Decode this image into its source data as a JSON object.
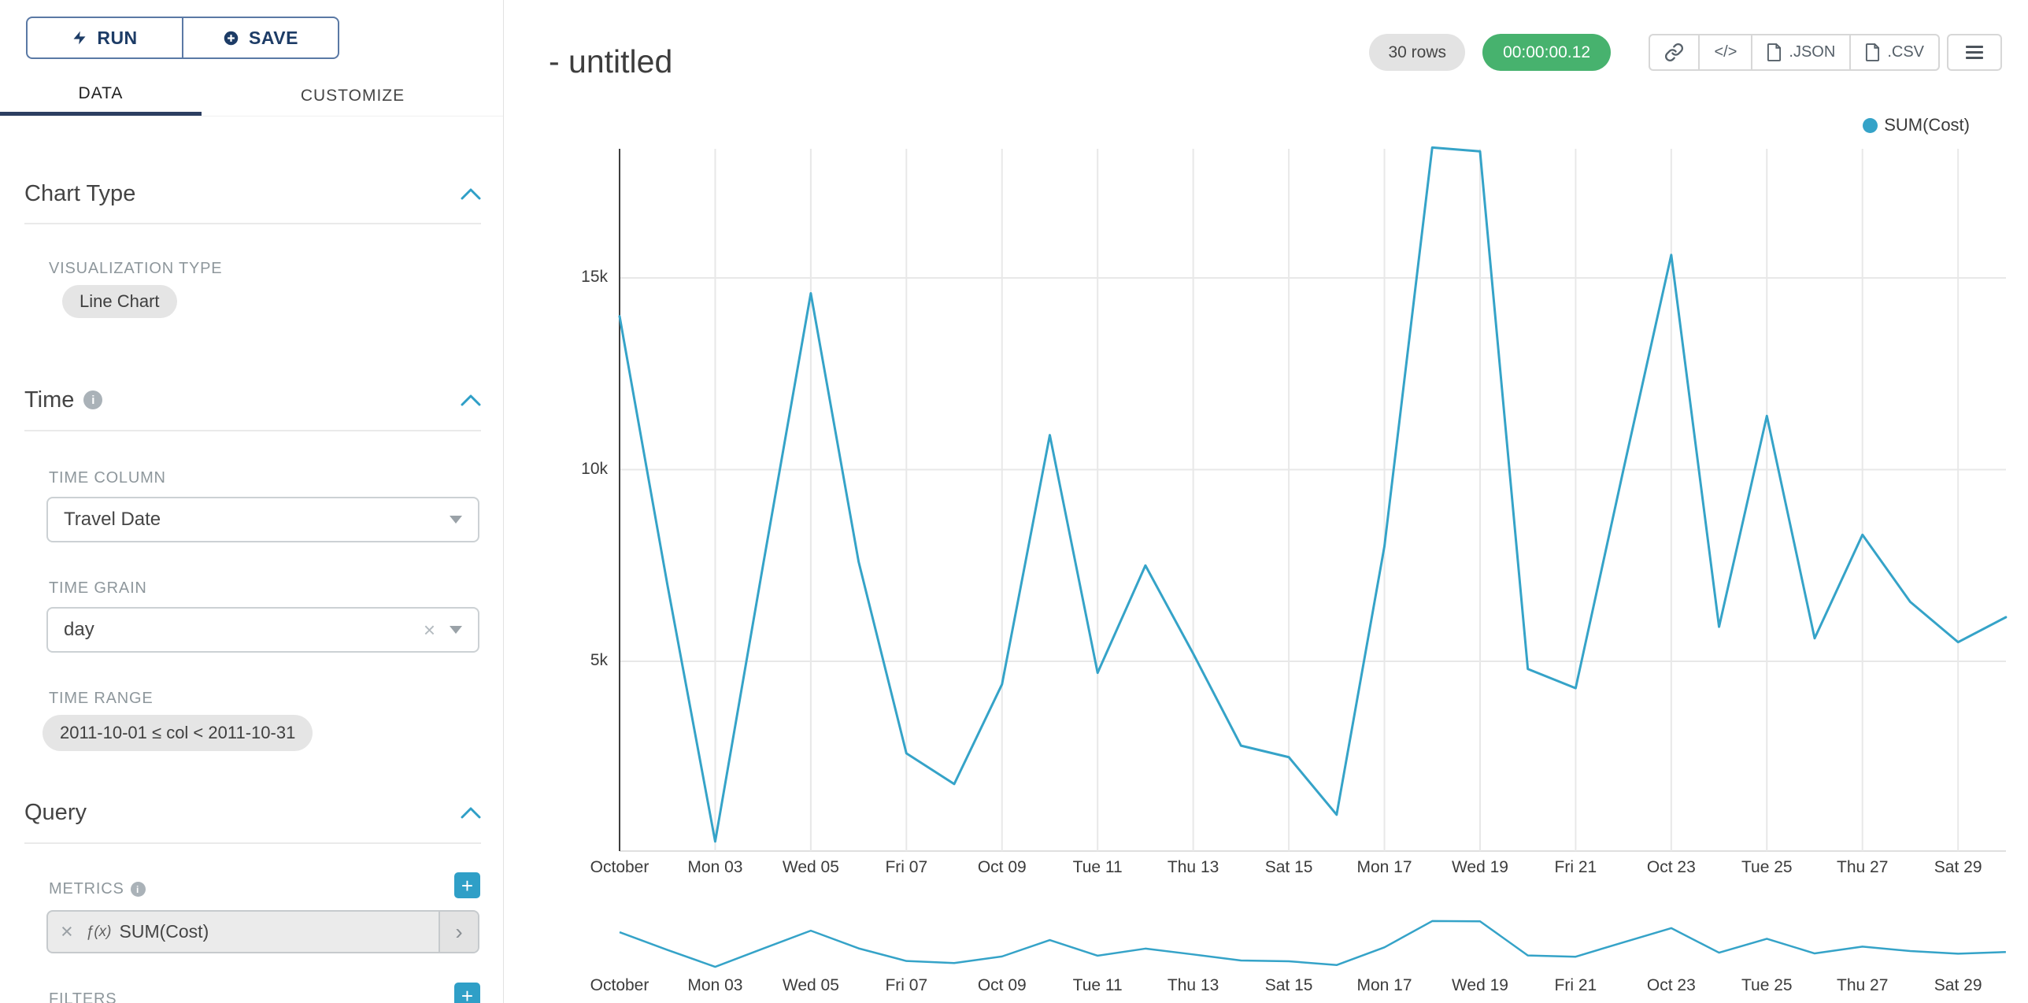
{
  "colors": {
    "accent": "#2F9FC7",
    "line": "#35A3C8",
    "timer_green": "#47B26E",
    "tab_underline": "#2C3E61",
    "button_navy": "#1D3C66",
    "button_border": "#5A79A5"
  },
  "icons": {
    "plus": "+",
    "clear": "×",
    "chevron_right": "›",
    "info": "i"
  },
  "sidebar": {
    "run_button": "RUN",
    "save_button": "SAVE",
    "tabs": {
      "data": "DATA",
      "customize": "CUSTOMIZE"
    },
    "chart_type": {
      "title": "Chart Type",
      "viz_label": "VISUALIZATION TYPE",
      "viz_value": "Line Chart"
    },
    "time": {
      "title": "Time",
      "column_label": "TIME COLUMN",
      "column_value": "Travel Date",
      "grain_label": "TIME GRAIN",
      "grain_value": "day",
      "range_label": "TIME RANGE",
      "range_value": "2011-10-01 ≤ col < 2011-10-31"
    },
    "query": {
      "title": "Query",
      "metrics_label": "METRICS",
      "metric_fn": "ƒ(x)",
      "metric_value": "SUM(Cost)",
      "filters_label": "FILTERS"
    }
  },
  "header": {
    "title": "- untitled",
    "rows_badge": "30 rows",
    "timer_badge": "00:00:00.12",
    "code_button": "</>",
    "json_button": ".JSON",
    "csv_button": ".CSV"
  },
  "chart_data": {
    "type": "line",
    "title": "",
    "xlabel": "",
    "ylabel": "",
    "legend_position": "top-right",
    "grid": true,
    "line_color": "#35A3C8",
    "num_points": 30,
    "x_range": "2011-10-01 to 2011-10-30, one point per day",
    "x_tick_days": [
      1,
      3,
      5,
      7,
      9,
      11,
      13,
      15,
      17,
      19,
      21,
      23,
      25,
      27,
      29
    ],
    "x_tick_labels": [
      "October",
      "Mon 03",
      "Wed 05",
      "Fri 07",
      "Oct 09",
      "Tue 11",
      "Thu 13",
      "Sat 15",
      "Mon 17",
      "Wed 19",
      "Fri 21",
      "Oct 23",
      "Tue 25",
      "Thu 27",
      "Sat 29"
    ],
    "y_ticks": [
      {
        "label": "5k",
        "value": 5000
      },
      {
        "label": "10k",
        "value": 10000
      },
      {
        "label": "15k",
        "value": 15000
      }
    ],
    "ylim": [
      0,
      18500
    ],
    "series": [
      {
        "name": "SUM(Cost)",
        "values": [
          14000,
          7000,
          300,
          7500,
          14600,
          7600,
          2600,
          1800,
          4400,
          10900,
          4700,
          7500,
          5200,
          2800,
          2500,
          1000,
          8000,
          18400,
          18300,
          4800,
          4300,
          10000,
          15600,
          5900,
          11400,
          5600,
          8300,
          6550,
          5500,
          6150
        ]
      }
    ],
    "mini_range_chart": true
  }
}
